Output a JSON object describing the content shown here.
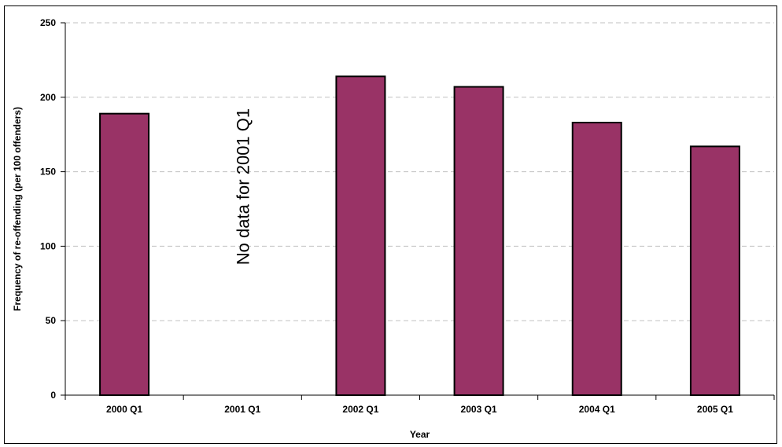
{
  "chart_data": {
    "type": "bar",
    "xlabel": "Year",
    "ylabel": "Frequency of re-offending (per 100 offenders)",
    "categories": [
      "2000 Q1",
      "2001 Q1",
      "2002 Q1",
      "2003 Q1",
      "2004 Q1",
      "2005 Q1"
    ],
    "values": [
      189,
      null,
      214,
      207,
      183,
      167
    ],
    "ylim": [
      0,
      250
    ],
    "yticks": [
      "0",
      "50",
      "100",
      "150",
      "200",
      "250"
    ],
    "grid": true,
    "legend": "none",
    "bar_color": "#993366",
    "annotation": "No data for 2001 Q1"
  }
}
